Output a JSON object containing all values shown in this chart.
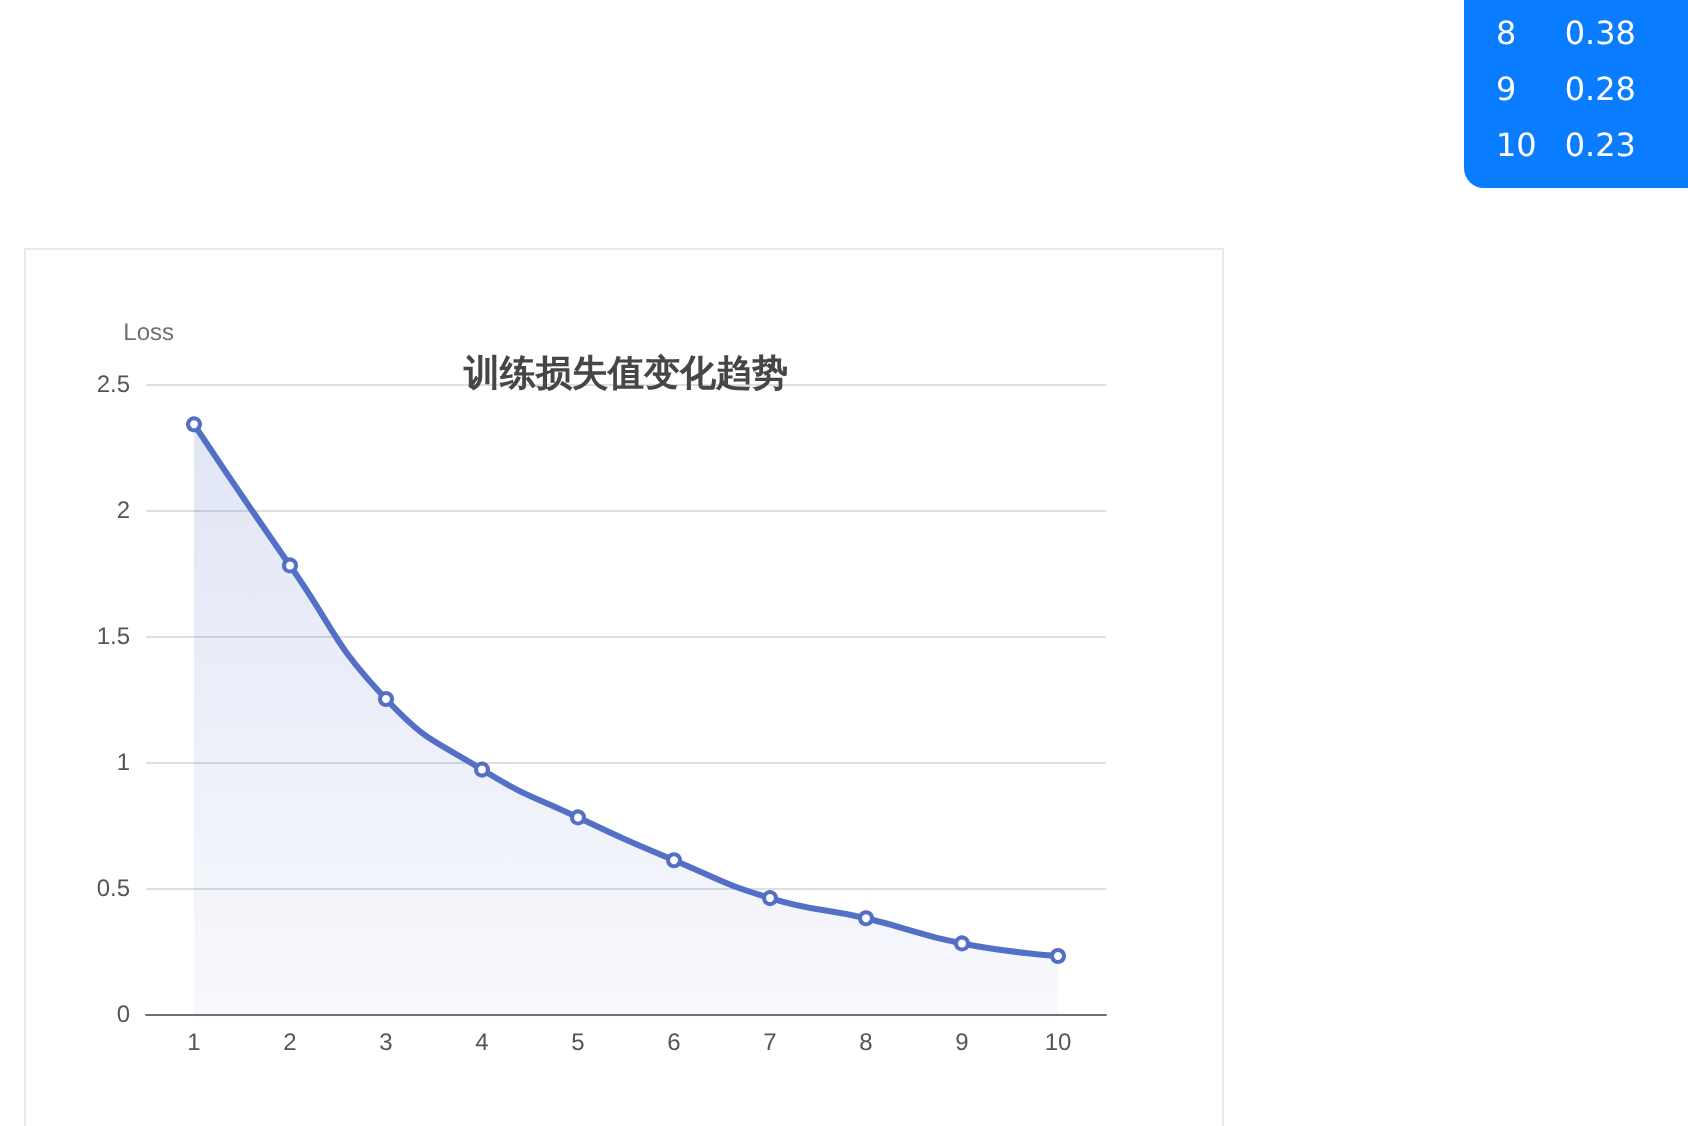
{
  "chart_data": {
    "type": "area",
    "title": "训练损失值变化趋势",
    "ylabel": "Loss",
    "categories": [
      "1",
      "2",
      "3",
      "4",
      "5",
      "6",
      "7",
      "8",
      "9",
      "10"
    ],
    "series": [
      {
        "color": "#5470c6",
        "values": [
          2.34,
          1.78,
          1.25,
          0.97,
          0.78,
          0.61,
          0.46,
          0.38,
          0.28,
          0.23
        ]
      }
    ],
    "annotations": [
      "8",
      "0.38",
      "9",
      "0.28",
      "10",
      "0.23"
    ],
    "ylim": [
      0,
      2.5
    ],
    "yticks": [
      0,
      0.5,
      1,
      1.5,
      2,
      2.5
    ],
    "grid": "y",
    "marker": "circle",
    "line_style": "solid"
  }
}
